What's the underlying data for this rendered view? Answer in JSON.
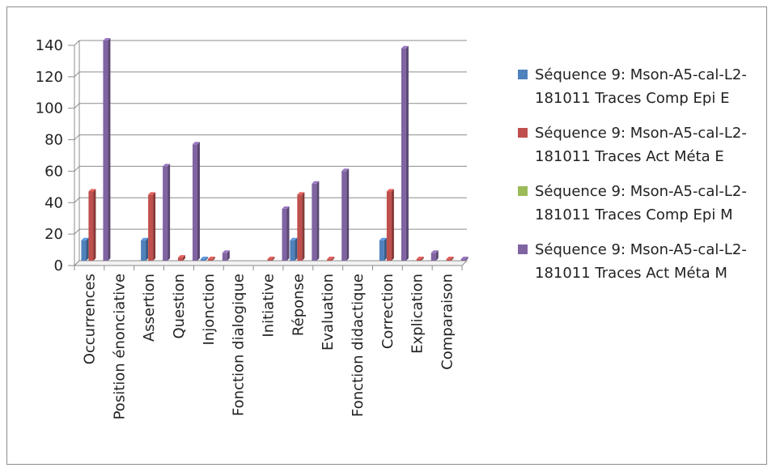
{
  "chart_data": {
    "type": "bar",
    "categories": [
      "Occurrences",
      "Position énonciative",
      "Assertion",
      "Question",
      "Injonction",
      "Fonction dialogique",
      "Initiative",
      "Réponse",
      "Evaluation",
      "Fonction didactique",
      "Correction",
      "Explication",
      "Comparaison"
    ],
    "series": [
      {
        "name": "Séquence 9: Mson-A5-cal-L2-181011 Traces Comp Epi E",
        "color": "#4f81bd",
        "values": [
          13,
          0,
          13,
          0,
          1,
          0,
          0,
          13,
          0,
          0,
          13,
          0,
          0
        ]
      },
      {
        "name": "Séquence 9: Mson-A5-cal-L2-181011 Traces Act Méta E",
        "color": "#c0504d",
        "values": [
          44,
          0,
          42,
          2,
          1,
          0,
          1,
          42,
          1,
          0,
          44,
          1,
          1
        ]
      },
      {
        "name": "Séquence 9: Mson-A5-cal-L2-181011 Traces Comp Epi M",
        "color": "#9bbb59",
        "values": [
          0,
          0,
          0,
          0,
          0,
          0,
          0,
          0,
          0,
          0,
          0,
          0,
          0
        ]
      },
      {
        "name": "Séquence 9: Mson-A5-cal-L2-181011 Traces Act Méta M",
        "color": "#8064a2",
        "values": [
          140,
          0,
          60,
          74,
          5,
          0,
          33,
          49,
          57,
          0,
          135,
          5,
          1
        ]
      }
    ],
    "yticks": [
      "0",
      "20",
      "40",
      "60",
      "80",
      "100",
      "120",
      "140"
    ],
    "ylim": [
      0,
      140
    ],
    "grid": true,
    "legend_position": "right"
  }
}
